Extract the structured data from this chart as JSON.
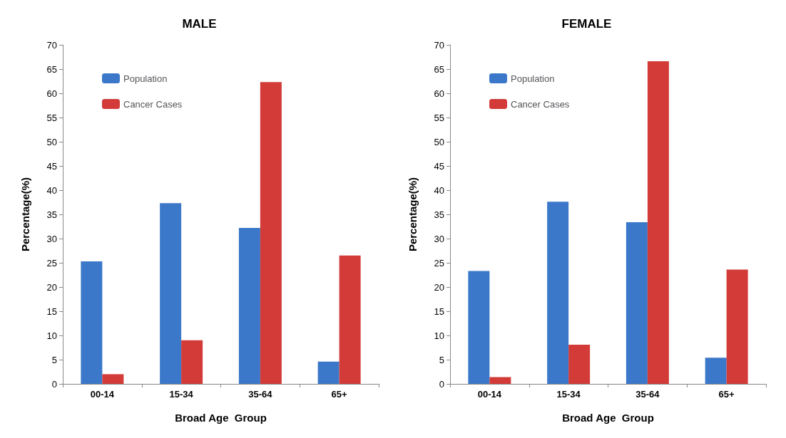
{
  "chart_data": [
    {
      "type": "bar",
      "title": "MALE",
      "xlabel": "Broad Age  Group",
      "ylabel": "Percentage(%)",
      "categories": [
        "00-14",
        "15-34",
        "35-64",
        "65+"
      ],
      "series": [
        {
          "name": "Population",
          "color": "#3b78c9",
          "values": [
            25.3,
            37.3,
            32.2,
            4.6
          ]
        },
        {
          "name": "Cancer Cases",
          "color": "#d23b38",
          "values": [
            2,
            9,
            62.3,
            26.5
          ]
        }
      ],
      "ylim": [
        0,
        70
      ],
      "yticks": [
        0,
        5,
        10,
        15,
        20,
        25,
        30,
        35,
        40,
        45,
        50,
        55,
        60,
        65,
        70
      ],
      "grid": false,
      "legend": "top left"
    },
    {
      "type": "bar",
      "title": "FEMALE",
      "xlabel": "Broad Age  Group",
      "ylabel": "Percentage(%)",
      "categories": [
        "00-14",
        "15-34",
        "35-64",
        "65+"
      ],
      "series": [
        {
          "name": "Population",
          "color": "#3b78c9",
          "values": [
            23.3,
            37.6,
            33.4,
            5.4
          ]
        },
        {
          "name": "Cancer Cases",
          "color": "#d23b38",
          "values": [
            1.4,
            8.1,
            66.6,
            23.6
          ]
        }
      ],
      "ylim": [
        0,
        70
      ],
      "yticks": [
        0,
        5,
        10,
        15,
        20,
        25,
        30,
        35,
        40,
        45,
        50,
        55,
        60,
        65,
        70
      ],
      "grid": false,
      "legend": "top left"
    }
  ]
}
